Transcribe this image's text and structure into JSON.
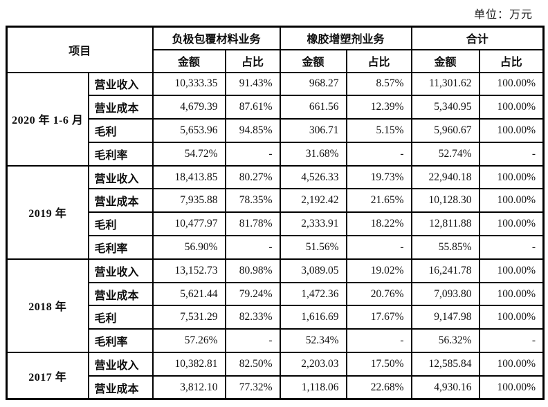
{
  "page": {
    "unit_label": "单位：万元"
  },
  "colors": {
    "border": "#000000",
    "text": "#121212",
    "background": "#ffffff"
  },
  "table": {
    "header": {
      "item": "项目",
      "groups": [
        {
          "label": "负极包覆材料业务"
        },
        {
          "label": "橡胶增塑剂业务"
        },
        {
          "label": "合计"
        }
      ],
      "sub_amount": "金额",
      "sub_share": "占比"
    },
    "sections": [
      {
        "period": "2020 年 1-6 月",
        "rows": [
          {
            "label": "营业收入",
            "cells": [
              "10,333.35",
              "91.43%",
              "968.27",
              "8.57%",
              "11,301.62",
              "100.00%"
            ]
          },
          {
            "label": "营业成本",
            "cells": [
              "4,679.39",
              "87.61%",
              "661.56",
              "12.39%",
              "5,340.95",
              "100.00%"
            ]
          },
          {
            "label": "毛利",
            "cells": [
              "5,653.96",
              "94.85%",
              "306.71",
              "5.15%",
              "5,960.67",
              "100.00%"
            ]
          },
          {
            "label": "毛利率",
            "cells": [
              "54.72%",
              "-",
              "31.68%",
              "-",
              "52.74%",
              "-"
            ]
          }
        ]
      },
      {
        "period": "2019 年",
        "rows": [
          {
            "label": "营业收入",
            "cells": [
              "18,413.85",
              "80.27%",
              "4,526.33",
              "19.73%",
              "22,940.18",
              "100.00%"
            ]
          },
          {
            "label": "营业成本",
            "cells": [
              "7,935.88",
              "78.35%",
              "2,192.42",
              "21.65%",
              "10,128.30",
              "100.00%"
            ]
          },
          {
            "label": "毛利",
            "cells": [
              "10,477.97",
              "81.78%",
              "2,333.91",
              "18.22%",
              "12,811.88",
              "100.00%"
            ]
          },
          {
            "label": "毛利率",
            "cells": [
              "56.90%",
              "-",
              "51.56%",
              "-",
              "55.85%",
              "-"
            ]
          }
        ]
      },
      {
        "period": "2018 年",
        "rows": [
          {
            "label": "营业收入",
            "cells": [
              "13,152.73",
              "80.98%",
              "3,089.05",
              "19.02%",
              "16,241.78",
              "100.00%"
            ]
          },
          {
            "label": "营业成本",
            "cells": [
              "5,621.44",
              "79.24%",
              "1,472.36",
              "20.76%",
              "7,093.80",
              "100.00%"
            ]
          },
          {
            "label": "毛利",
            "cells": [
              "7,531.29",
              "82.33%",
              "1,616.69",
              "17.67%",
              "9,147.98",
              "100.00%"
            ]
          },
          {
            "label": "毛利率",
            "cells": [
              "57.26%",
              "-",
              "52.34%",
              "-",
              "56.32%",
              "-"
            ]
          }
        ]
      },
      {
        "period": "2017 年",
        "rows": [
          {
            "label": "营业收入",
            "cells": [
              "10,382.81",
              "82.50%",
              "2,203.03",
              "17.50%",
              "12,585.84",
              "100.00%"
            ]
          },
          {
            "label": "营业成本",
            "cells": [
              "3,812.10",
              "77.32%",
              "1,118.06",
              "22.68%",
              "4,930.16",
              "100.00%"
            ]
          }
        ]
      }
    ]
  }
}
